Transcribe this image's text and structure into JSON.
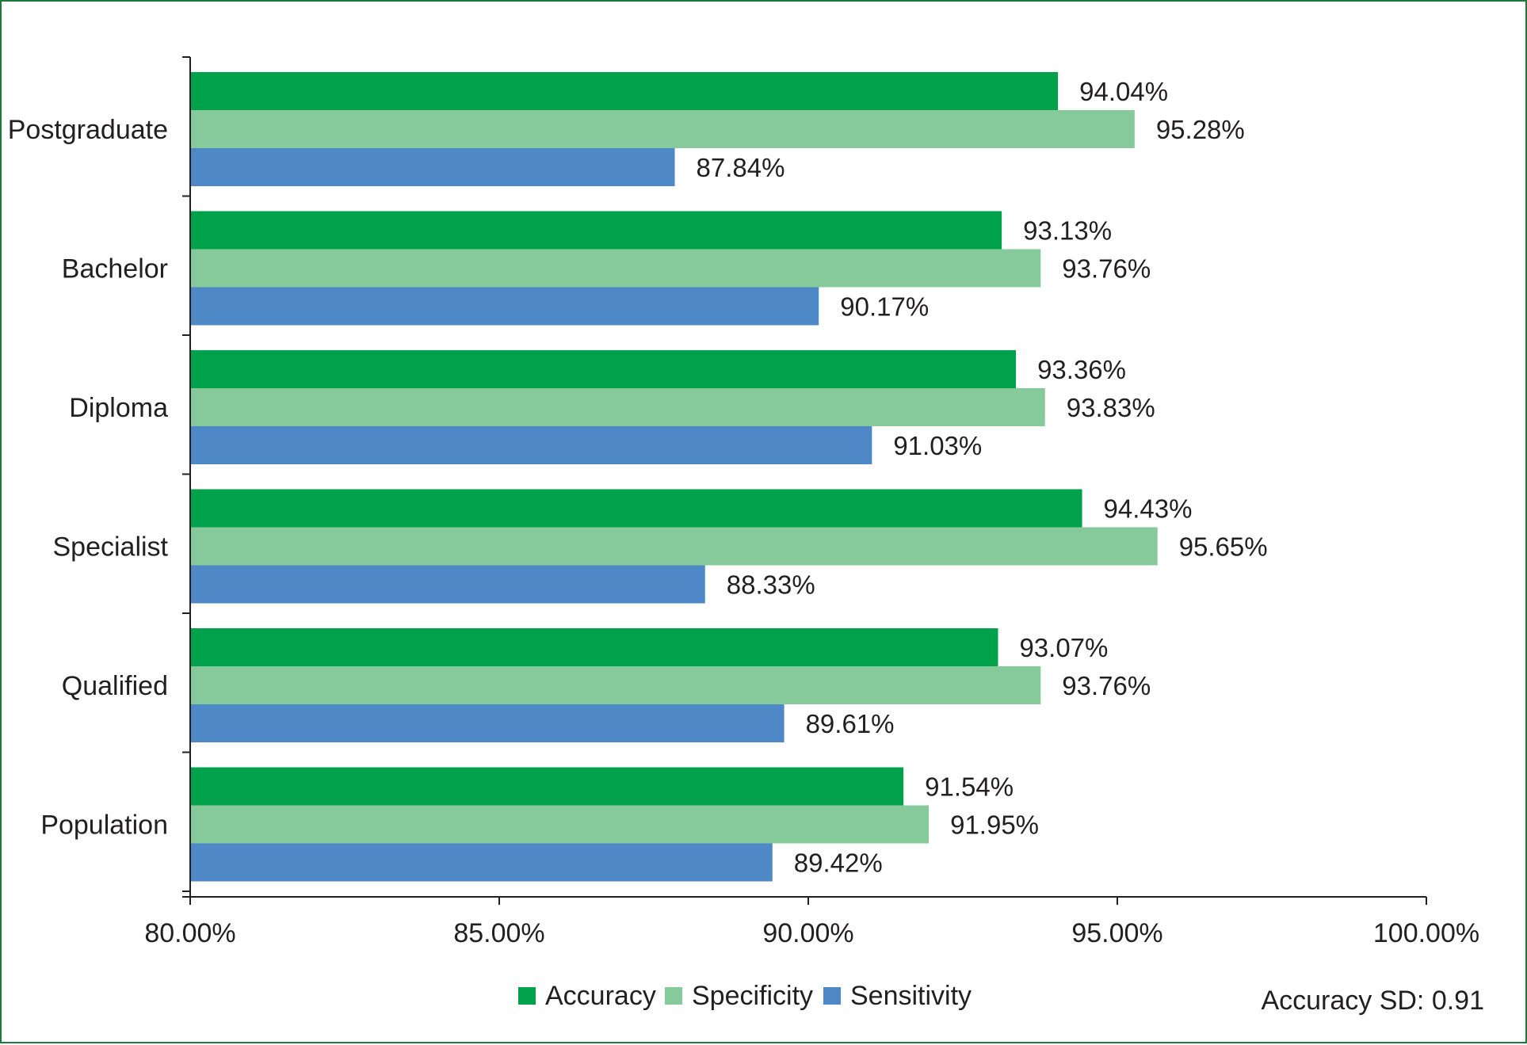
{
  "chart_data": {
    "type": "bar",
    "orientation": "horizontal",
    "categories": [
      "Postgraduate",
      "Bachelor",
      "Diploma",
      "Specialist",
      "Qualified",
      "Population"
    ],
    "series": [
      {
        "name": "Accuracy",
        "color": "#00a14b",
        "values": [
          94.04,
          93.13,
          93.36,
          94.43,
          93.07,
          91.54
        ]
      },
      {
        "name": "Specificity",
        "color": "#86c99b",
        "values": [
          95.28,
          93.76,
          93.83,
          95.65,
          93.76,
          91.95
        ]
      },
      {
        "name": "Sensitivity",
        "color": "#4f88c6",
        "values": [
          87.84,
          90.17,
          91.03,
          88.33,
          89.61,
          89.42
        ]
      }
    ],
    "value_labels": [
      [
        "94.04%",
        "95.28%",
        "87.84%"
      ],
      [
        "93.13%",
        "93.76%",
        "90.17%"
      ],
      [
        "93.36%",
        "93.83%",
        "91.03%"
      ],
      [
        "94.43%",
        "95.65%",
        "88.33%"
      ],
      [
        "93.07%",
        "93.76%",
        "89.61%"
      ],
      [
        "91.54%",
        "91.95%",
        "89.42%"
      ]
    ],
    "xlim": [
      80,
      100
    ],
    "xticks": [
      80,
      85,
      90,
      95,
      100
    ],
    "xtick_labels": [
      "80.00%",
      "85.00%",
      "90.00%",
      "95.00%",
      "100.00%"
    ],
    "legend": {
      "position": "bottom-center",
      "entries": [
        "Accuracy",
        "Specificity",
        "Sensitivity"
      ]
    },
    "annotation": "Accuracy SD: 0.91",
    "grid": false,
    "frame_color": "#1f7a3a"
  }
}
